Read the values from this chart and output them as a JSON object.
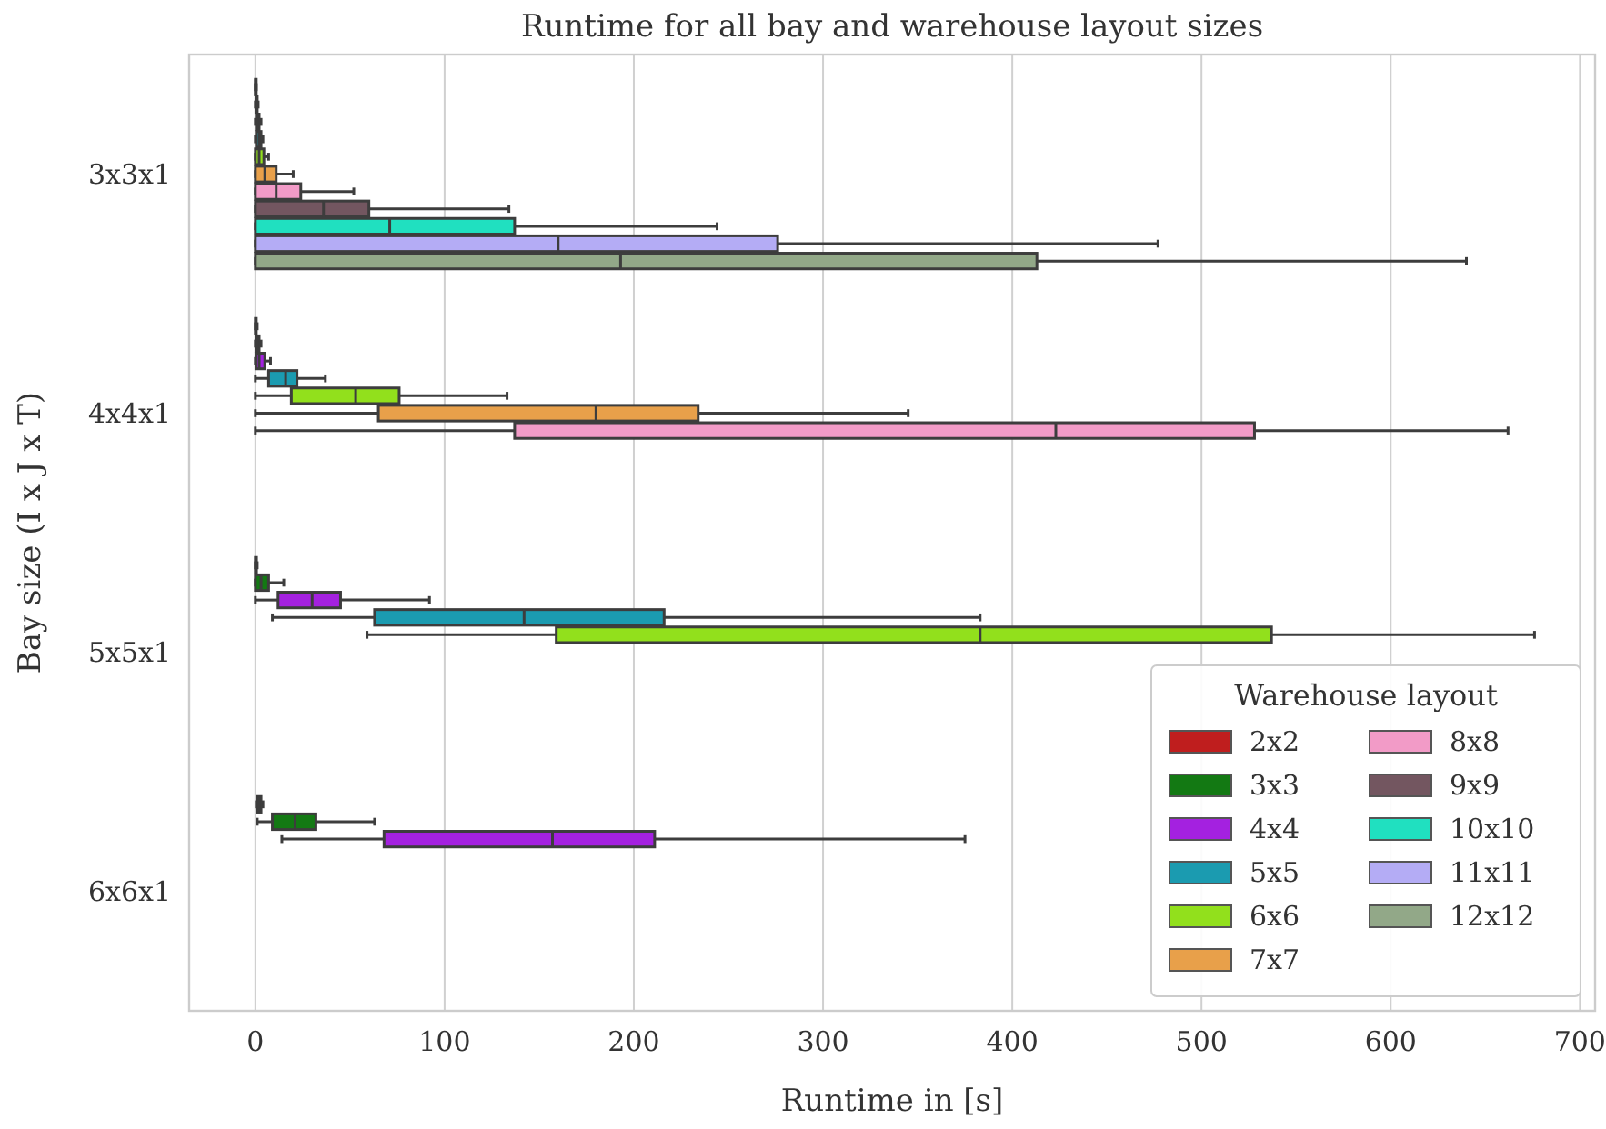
{
  "chart_data": {
    "type": "box",
    "orientation": "horizontal",
    "title": "Runtime for all bay and warehouse layout sizes",
    "xlabel": "Runtime in [s]",
    "ylabel": "Bay size (I x J x T)",
    "legend_title": "Warehouse layout",
    "legend": "bottom right",
    "grid": "x",
    "xlim": [
      -35,
      708
    ],
    "xticks": [
      0,
      100,
      200,
      300,
      400,
      500,
      600,
      700
    ],
    "categories": [
      "3x3x1",
      "4x4x1",
      "5x5x1",
      "6x6x1"
    ],
    "series": [
      {
        "name": "2x2",
        "color": "#bf1e1e",
        "boxes": [
          {
            "low": 0,
            "q1": 0,
            "median": 0.2,
            "q3": 0.3,
            "high": 0.5
          },
          {
            "low": 0,
            "q1": 0,
            "median": 0.3,
            "q3": 0.5,
            "high": 1
          },
          {
            "low": 0,
            "q1": 0,
            "median": 0.3,
            "q3": 0.6,
            "high": 1
          },
          {
            "low": 0.5,
            "q1": 1,
            "median": 2,
            "q3": 3,
            "high": 4
          }
        ]
      },
      {
        "name": "3x3",
        "color": "#137913",
        "boxes": [
          {
            "low": 0,
            "q1": 0.3,
            "median": 0.5,
            "q3": 1,
            "high": 1.5
          },
          {
            "low": 0,
            "q1": 0.3,
            "median": 1,
            "q3": 2,
            "high": 3
          },
          {
            "low": 0,
            "q1": 0,
            "median": 3,
            "q3": 7,
            "high": 15
          },
          {
            "low": 1,
            "q1": 9,
            "median": 21,
            "q3": 32,
            "high": 63
          }
        ]
      },
      {
        "name": "4x4",
        "color": "#a421e0",
        "boxes": [
          {
            "low": 0,
            "q1": 0.5,
            "median": 1,
            "q3": 2,
            "high": 3
          },
          {
            "low": 0,
            "q1": 0.3,
            "median": 2,
            "q3": 5,
            "high": 8
          },
          {
            "low": 0,
            "q1": 12,
            "median": 30,
            "q3": 45,
            "high": 92
          },
          {
            "low": 14,
            "q1": 68,
            "median": 157,
            "q3": 211,
            "high": 375
          }
        ]
      },
      {
        "name": "5x5",
        "color": "#1b9bb0",
        "boxes": [
          {
            "low": 0,
            "q1": 0.5,
            "median": 2,
            "q3": 3,
            "high": 4
          },
          {
            "low": 0,
            "q1": 7,
            "median": 16,
            "q3": 22,
            "high": 37
          },
          {
            "low": 9,
            "q1": 63,
            "median": 142,
            "q3": 216,
            "high": 383
          },
          null
        ]
      },
      {
        "name": "6x6",
        "color": "#92e01c",
        "boxes": [
          {
            "low": 0,
            "q1": 0,
            "median": 2,
            "q3": 4.5,
            "high": 7
          },
          {
            "low": 0,
            "q1": 19,
            "median": 53,
            "q3": 76,
            "high": 133
          },
          {
            "low": 59,
            "q1": 159,
            "median": 383,
            "q3": 537,
            "high": 676
          },
          null
        ]
      },
      {
        "name": "7x7",
        "color": "#e8a04a",
        "boxes": [
          {
            "low": 0,
            "q1": 0,
            "median": 5,
            "q3": 11,
            "high": 20
          },
          {
            "low": 0,
            "q1": 65,
            "median": 180,
            "q3": 234,
            "high": 345
          },
          null,
          null
        ]
      },
      {
        "name": "8x8",
        "color": "#f29bc7",
        "boxes": [
          {
            "low": 0,
            "q1": 0,
            "median": 11,
            "q3": 24,
            "high": 52
          },
          {
            "low": 0,
            "q1": 137,
            "median": 423,
            "q3": 528,
            "high": 662
          },
          null,
          null
        ]
      },
      {
        "name": "9x9",
        "color": "#735660",
        "boxes": [
          {
            "low": 0,
            "q1": 0,
            "median": 36,
            "q3": 60,
            "high": 134
          },
          null,
          null,
          null
        ]
      },
      {
        "name": "10x10",
        "color": "#20e0c0",
        "boxes": [
          {
            "low": 0,
            "q1": 0,
            "median": 71,
            "q3": 137,
            "high": 244
          },
          null,
          null,
          null
        ]
      },
      {
        "name": "11x11",
        "color": "#b4acf5",
        "boxes": [
          {
            "low": 0,
            "q1": 0,
            "median": 160,
            "q3": 276,
            "high": 477
          },
          null,
          null,
          null
        ]
      },
      {
        "name": "12x12",
        "color": "#92a888",
        "boxes": [
          {
            "low": 0,
            "q1": 0,
            "median": 193,
            "q3": 413,
            "high": 640
          },
          null,
          null,
          null
        ]
      }
    ]
  }
}
